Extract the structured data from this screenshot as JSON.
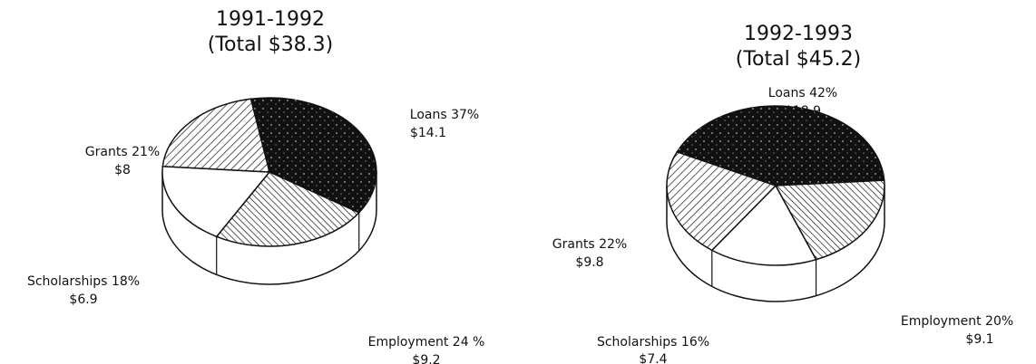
{
  "chart_data": [
    {
      "type": "pie",
      "title": "1991-1992",
      "subtitle": "(Total $38.3)",
      "categories": [
        "Loans",
        "Employment",
        "Scholarships",
        "Grants"
      ],
      "values": [
        37,
        24,
        18,
        21
      ],
      "value_labels": [
        "37%",
        "24 %",
        "18%",
        "21%"
      ],
      "amount_labels": [
        "$14.1",
        "$9.2",
        "$6.9",
        "$8"
      ],
      "colors": [
        "#111111",
        "#ffffff",
        "#ffffff",
        "#ffffff"
      ]
    },
    {
      "type": "pie",
      "title": "1992-1993",
      "subtitle": "(Total $45.2)",
      "categories": [
        "Loans",
        "Employment",
        "Scholarships",
        "Grants"
      ],
      "values": [
        42,
        20,
        16,
        22
      ],
      "value_labels": [
        "42%",
        "20%",
        "16%",
        "22%"
      ],
      "amount_labels": [
        "$18.9",
        "$9.1",
        "$7.4",
        "$9.8"
      ],
      "colors": [
        "#111111",
        "#ffffff",
        "#ffffff",
        "#ffffff"
      ]
    }
  ]
}
